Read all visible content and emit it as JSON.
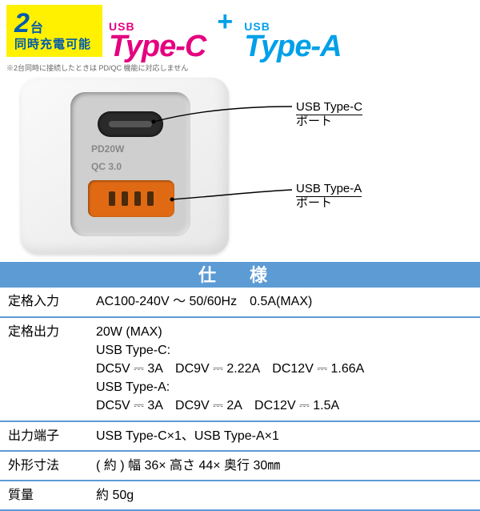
{
  "badge": {
    "num": "2",
    "unit": "台",
    "sub": "同時充電可能"
  },
  "title": {
    "c_small": "USB",
    "c_big": "Type-C",
    "plus": "+",
    "a_small": "USB",
    "a_big": "Type-A"
  },
  "disclaimer": "※2台同時に接続したときは PD/QC 機能に対応しません",
  "charger": {
    "print_pd": "PD20W",
    "print_qc": "QC 3.0"
  },
  "callouts": {
    "c_line1": "USB Type-C",
    "c_line2": "ポート",
    "a_line1": "USB Type-A",
    "a_line2": "ポート"
  },
  "colors": {
    "badge_bg": "#fff100",
    "badge_text": "#005bac",
    "typec": "#e4007f",
    "typea": "#00a0e9",
    "spec_blue": "#5d9bd4",
    "usb_a_orange": "#e06a14"
  },
  "spec_header": "仕 様",
  "spec": [
    {
      "k": "定格入力",
      "v": "AC100-240V ～ 50/60Hz　0.5A(MAX)"
    },
    {
      "k": "定格出力",
      "v": "20W (MAX)\nUSB Type-C:\nDC5V ⎓ 3A　DC9V ⎓ 2.22A　DC12V ⎓ 1.66A\nUSB Type-A:\nDC5V ⎓ 3A　DC9V ⎓ 2A　DC12V ⎓ 1.5A"
    },
    {
      "k": "出力端子",
      "v": "USB Type-C×1、USB Type-A×1"
    },
    {
      "k": "外形寸法",
      "v": "( 約 ) 幅 36× 高さ 44× 奥行 30㎜"
    },
    {
      "k": "質量",
      "v": "約 50g"
    }
  ]
}
